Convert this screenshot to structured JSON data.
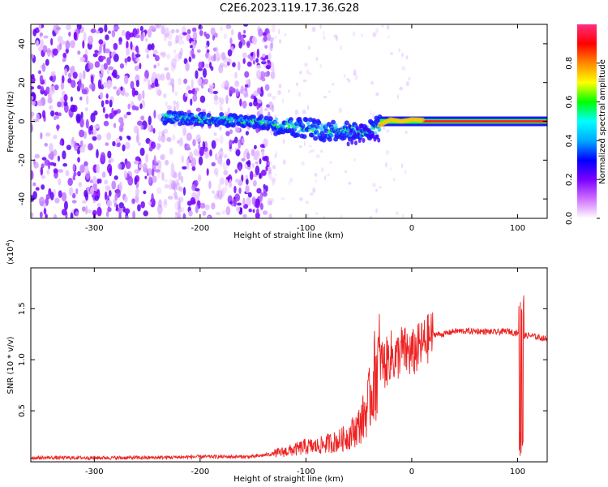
{
  "title": "C2E6.2023.119.17.36.G28",
  "chart_data": [
    {
      "type": "heatmap",
      "xlabel": "Height of straight line (km)",
      "ylabel": "Frequency (Hz)",
      "xlim": [
        -360,
        128
      ],
      "ylim": [
        -50,
        50
      ],
      "xticks": [
        -300,
        -200,
        -100,
        0,
        100
      ],
      "yticks": [
        -40,
        -20,
        0,
        20,
        40
      ],
      "colorbar": {
        "label": "Normalized spectral amplitude",
        "range": [
          0,
          1
        ],
        "ticks": [
          0.0,
          0.2,
          0.4,
          0.6,
          0.8
        ],
        "colors": [
          "#ffffff",
          "#d070ff",
          "#7a00ff",
          "#0000ff",
          "#00aaff",
          "#00ffff",
          "#00ff00",
          "#ffff00",
          "#ff8800",
          "#ff0000",
          "#ff2f80"
        ]
      },
      "ridge": {
        "x": [
          -230,
          -200,
          -150,
          -120,
          -100,
          -80,
          -60,
          -50,
          -40,
          -30,
          -20,
          -10,
          0,
          50,
          100,
          128
        ],
        "freq": [
          2,
          1,
          0,
          -2,
          -3,
          -5,
          -4,
          -6,
          -5,
          -2,
          1,
          0,
          1,
          0,
          0,
          0
        ]
      }
    },
    {
      "type": "line",
      "xlabel": "Height of straight line (km)",
      "ylabel": "SNR (10 * v/v)",
      "y_exponent_label": "(x10",
      "y_exponent_power": "4",
      "y_exponent_close": ")",
      "xlim": [
        -360,
        128
      ],
      "ylim": [
        0,
        19000
      ],
      "xticks": [
        -300,
        -200,
        -100,
        0,
        100
      ],
      "yticks": [
        0.5,
        1.0,
        1.5
      ],
      "ytick_labels": [
        "0.5",
        "1.0",
        "1.5"
      ],
      "series": [
        {
          "color": "#ee2222",
          "x": [
            -360,
            -300,
            -250,
            -200,
            -150,
            -130,
            -110,
            -100,
            -90,
            -80,
            -70,
            -60,
            -50,
            -45,
            -40,
            -35,
            -30,
            -25,
            -20,
            -15,
            -10,
            0,
            10,
            20,
            30,
            40,
            60,
            80,
            90,
            100,
            103,
            105,
            110,
            120,
            128
          ],
          "y": [
            400,
            400,
            400,
            500,
            500,
            800,
            1200,
            1500,
            1500,
            1800,
            2000,
            2500,
            3500,
            4500,
            6000,
            8500,
            10000,
            9500,
            10500,
            10000,
            11000,
            10500,
            11500,
            12500,
            12500,
            12800,
            12800,
            12700,
            12800,
            12600,
            12000,
            12300,
            12400,
            12200,
            12000
          ]
        }
      ]
    }
  ]
}
